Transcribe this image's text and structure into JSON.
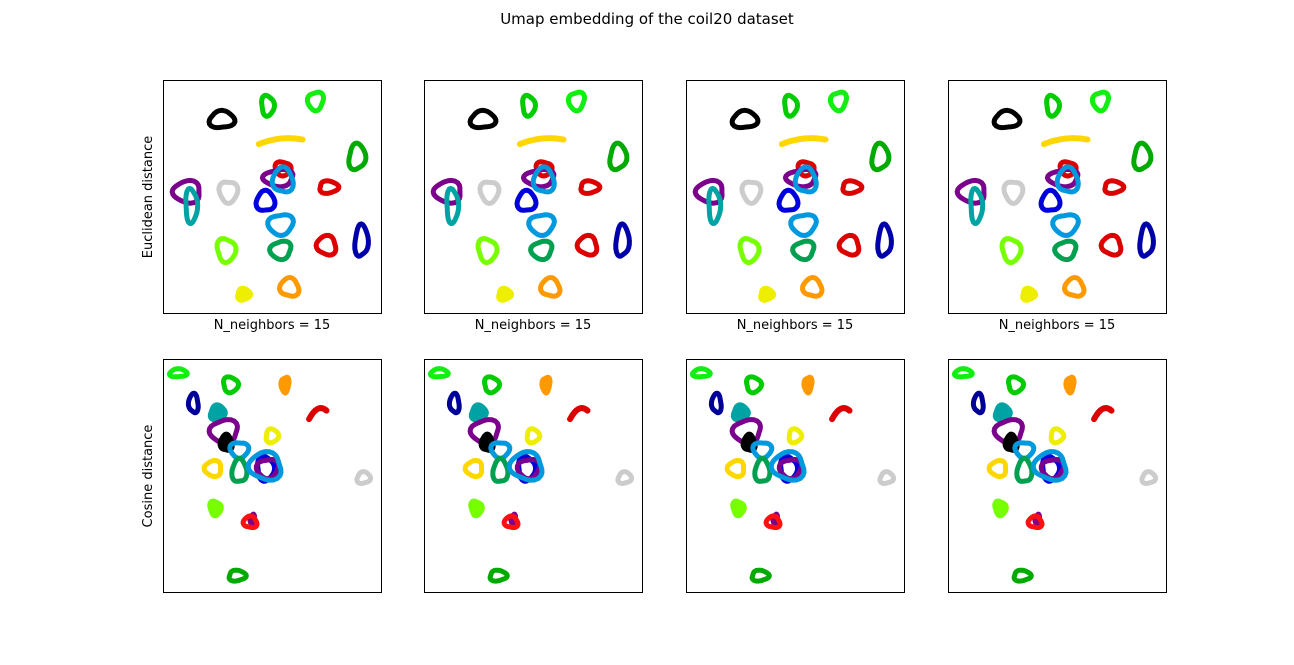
{
  "figure": {
    "title": "Umap embedding of the coil20 dataset",
    "row_labels": [
      "Euclidean distance",
      "Cosine distance"
    ],
    "col_label": "N_neighbors = 15"
  },
  "chart_data": [
    {
      "type": "scatter",
      "panel": "row1",
      "ylabel": "Euclidean distance",
      "xlabel": "N_neighbors = 15",
      "xticks": [],
      "yticks": [],
      "grid": false,
      "xlim": [
        0,
        100
      ],
      "ylim": [
        0,
        100
      ],
      "clusters": [
        {
          "color": "#000000",
          "cx": 27,
          "cy": 83,
          "rx": 5.5,
          "ry": 3.8,
          "shape": "ring"
        },
        {
          "color": "#00cc00",
          "cx": 48,
          "cy": 89,
          "rx": 3,
          "ry": 4.2,
          "shape": "ring"
        },
        {
          "color": "#11ee11",
          "cx": 70,
          "cy": 91,
          "rx": 3.5,
          "ry": 4,
          "shape": "ring"
        },
        {
          "color": "#ffd700",
          "cx": 54,
          "cy": 74,
          "rx": 10,
          "ry": 1.5,
          "shape": "curve"
        },
        {
          "color": "#00aa00",
          "cx": 89,
          "cy": 67,
          "rx": 3.8,
          "ry": 5.5,
          "shape": "ring"
        },
        {
          "color": "#dd0000",
          "cx": 55,
          "cy": 62,
          "rx": 3.5,
          "ry": 3,
          "shape": "ring"
        },
        {
          "color": "#7b008b",
          "cx": 53,
          "cy": 58,
          "rx": 7,
          "ry": 3.5,
          "shape": "ring"
        },
        {
          "color": "#0099dd",
          "cx": 55,
          "cy": 57,
          "rx": 4.5,
          "ry": 5.5,
          "shape": "ring"
        },
        {
          "color": "#dd0000",
          "cx": 76,
          "cy": 54,
          "rx": 4.5,
          "ry": 2.5,
          "shape": "ring"
        },
        {
          "color": "#cccccc",
          "cx": 30,
          "cy": 52,
          "rx": 4,
          "ry": 4.8,
          "shape": "ring"
        },
        {
          "color": "#7b008b",
          "cx": 11,
          "cy": 52,
          "rx": 6.5,
          "ry": 4.5,
          "shape": "ring"
        },
        {
          "color": "#0000dd",
          "cx": 47,
          "cy": 48,
          "rx": 4,
          "ry": 4.5,
          "shape": "ring"
        },
        {
          "color": "#00a3a3",
          "cx": 13,
          "cy": 46,
          "rx": 2.8,
          "ry": 7,
          "shape": "ring"
        },
        {
          "color": "#0099dd",
          "cx": 54,
          "cy": 38,
          "rx": 5.5,
          "ry": 4.5,
          "shape": "ring"
        },
        {
          "color": "#dd0000",
          "cx": 75,
          "cy": 29,
          "rx": 4.5,
          "ry": 4,
          "shape": "ring"
        },
        {
          "color": "#0000aa",
          "cx": 91,
          "cy": 31,
          "rx": 3,
          "ry": 6.8,
          "shape": "ring"
        },
        {
          "color": "#77ff00",
          "cx": 29,
          "cy": 27,
          "rx": 4.2,
          "ry": 5,
          "shape": "ring"
        },
        {
          "color": "#00a050",
          "cx": 54,
          "cy": 27,
          "rx": 4.8,
          "ry": 3.8,
          "shape": "ring"
        },
        {
          "color": "#ff9900",
          "cx": 58,
          "cy": 11,
          "rx": 4.2,
          "ry": 4,
          "shape": "ring"
        },
        {
          "color": "#eeee00",
          "cx": 37,
          "cy": 8,
          "rx": 3.5,
          "ry": 2.8,
          "shape": "blob"
        }
      ]
    },
    {
      "type": "scatter",
      "panel": "row2",
      "ylabel": "Cosine distance",
      "xlabel": "",
      "xticks": [],
      "yticks": [],
      "grid": false,
      "xlim": [
        0,
        100
      ],
      "ylim": [
        0,
        100
      ],
      "clusters": [
        {
          "color": "#11ee11",
          "cx": 7,
          "cy": 94,
          "rx": 3.8,
          "ry": 1.8,
          "shape": "ring"
        },
        {
          "color": "#00cc00",
          "cx": 31,
          "cy": 89,
          "rx": 3.5,
          "ry": 3.2,
          "shape": "ring"
        },
        {
          "color": "#ff9900",
          "cx": 56,
          "cy": 89,
          "rx": 2.2,
          "ry": 3.8,
          "shape": "blob"
        },
        {
          "color": "#000099",
          "cx": 14,
          "cy": 81,
          "rx": 2.2,
          "ry": 4,
          "shape": "ring"
        },
        {
          "color": "#00a3a3",
          "cx": 25,
          "cy": 77,
          "rx": 3.8,
          "ry": 3.5,
          "shape": "blob"
        },
        {
          "color": "#dd0000",
          "cx": 71,
          "cy": 77,
          "rx": 4,
          "ry": 2.8,
          "shape": "curve"
        },
        {
          "color": "#7b008b",
          "cx": 28,
          "cy": 69,
          "rx": 6.5,
          "ry": 4.8,
          "shape": "ring"
        },
        {
          "color": "#000000",
          "cx": 29,
          "cy": 64,
          "rx": 3,
          "ry": 4,
          "shape": "blob"
        },
        {
          "color": "#eeee00",
          "cx": 50,
          "cy": 67,
          "rx": 3,
          "ry": 2.8,
          "shape": "ring"
        },
        {
          "color": "#0099dd",
          "cx": 35,
          "cy": 61,
          "rx": 4,
          "ry": 3.5,
          "shape": "ring"
        },
        {
          "color": "#ffd700",
          "cx": 23,
          "cy": 53,
          "rx": 4,
          "ry": 3.2,
          "shape": "ring"
        },
        {
          "color": "#00a050",
          "cx": 35,
          "cy": 52,
          "rx": 3.2,
          "ry": 5.2,
          "shape": "ring"
        },
        {
          "color": "#0000dd",
          "cx": 47,
          "cy": 53,
          "rx": 4,
          "ry": 5,
          "shape": "ring"
        },
        {
          "color": "#7b008b",
          "cx": 48,
          "cy": 53,
          "rx": 4.8,
          "ry": 4.2,
          "shape": "ring"
        },
        {
          "color": "#0099dd",
          "cx": 47,
          "cy": 54,
          "rx": 7.5,
          "ry": 5.8,
          "shape": "ring"
        },
        {
          "color": "#cccccc",
          "cx": 92,
          "cy": 49,
          "rx": 3,
          "ry": 2.5,
          "shape": "ring"
        },
        {
          "color": "#77ff00",
          "cx": 24,
          "cy": 36,
          "rx": 3,
          "ry": 3.5,
          "shape": "blob"
        },
        {
          "color": "#7b008b",
          "cx": 41,
          "cy": 31,
          "rx": 1.5,
          "ry": 2.8,
          "shape": "blob"
        },
        {
          "color": "#ff1010",
          "cx": 40,
          "cy": 30,
          "rx": 3,
          "ry": 2.5,
          "shape": "ring"
        },
        {
          "color": "#00aa00",
          "cx": 34,
          "cy": 7,
          "rx": 4,
          "ry": 2.2,
          "shape": "ring"
        }
      ]
    }
  ]
}
